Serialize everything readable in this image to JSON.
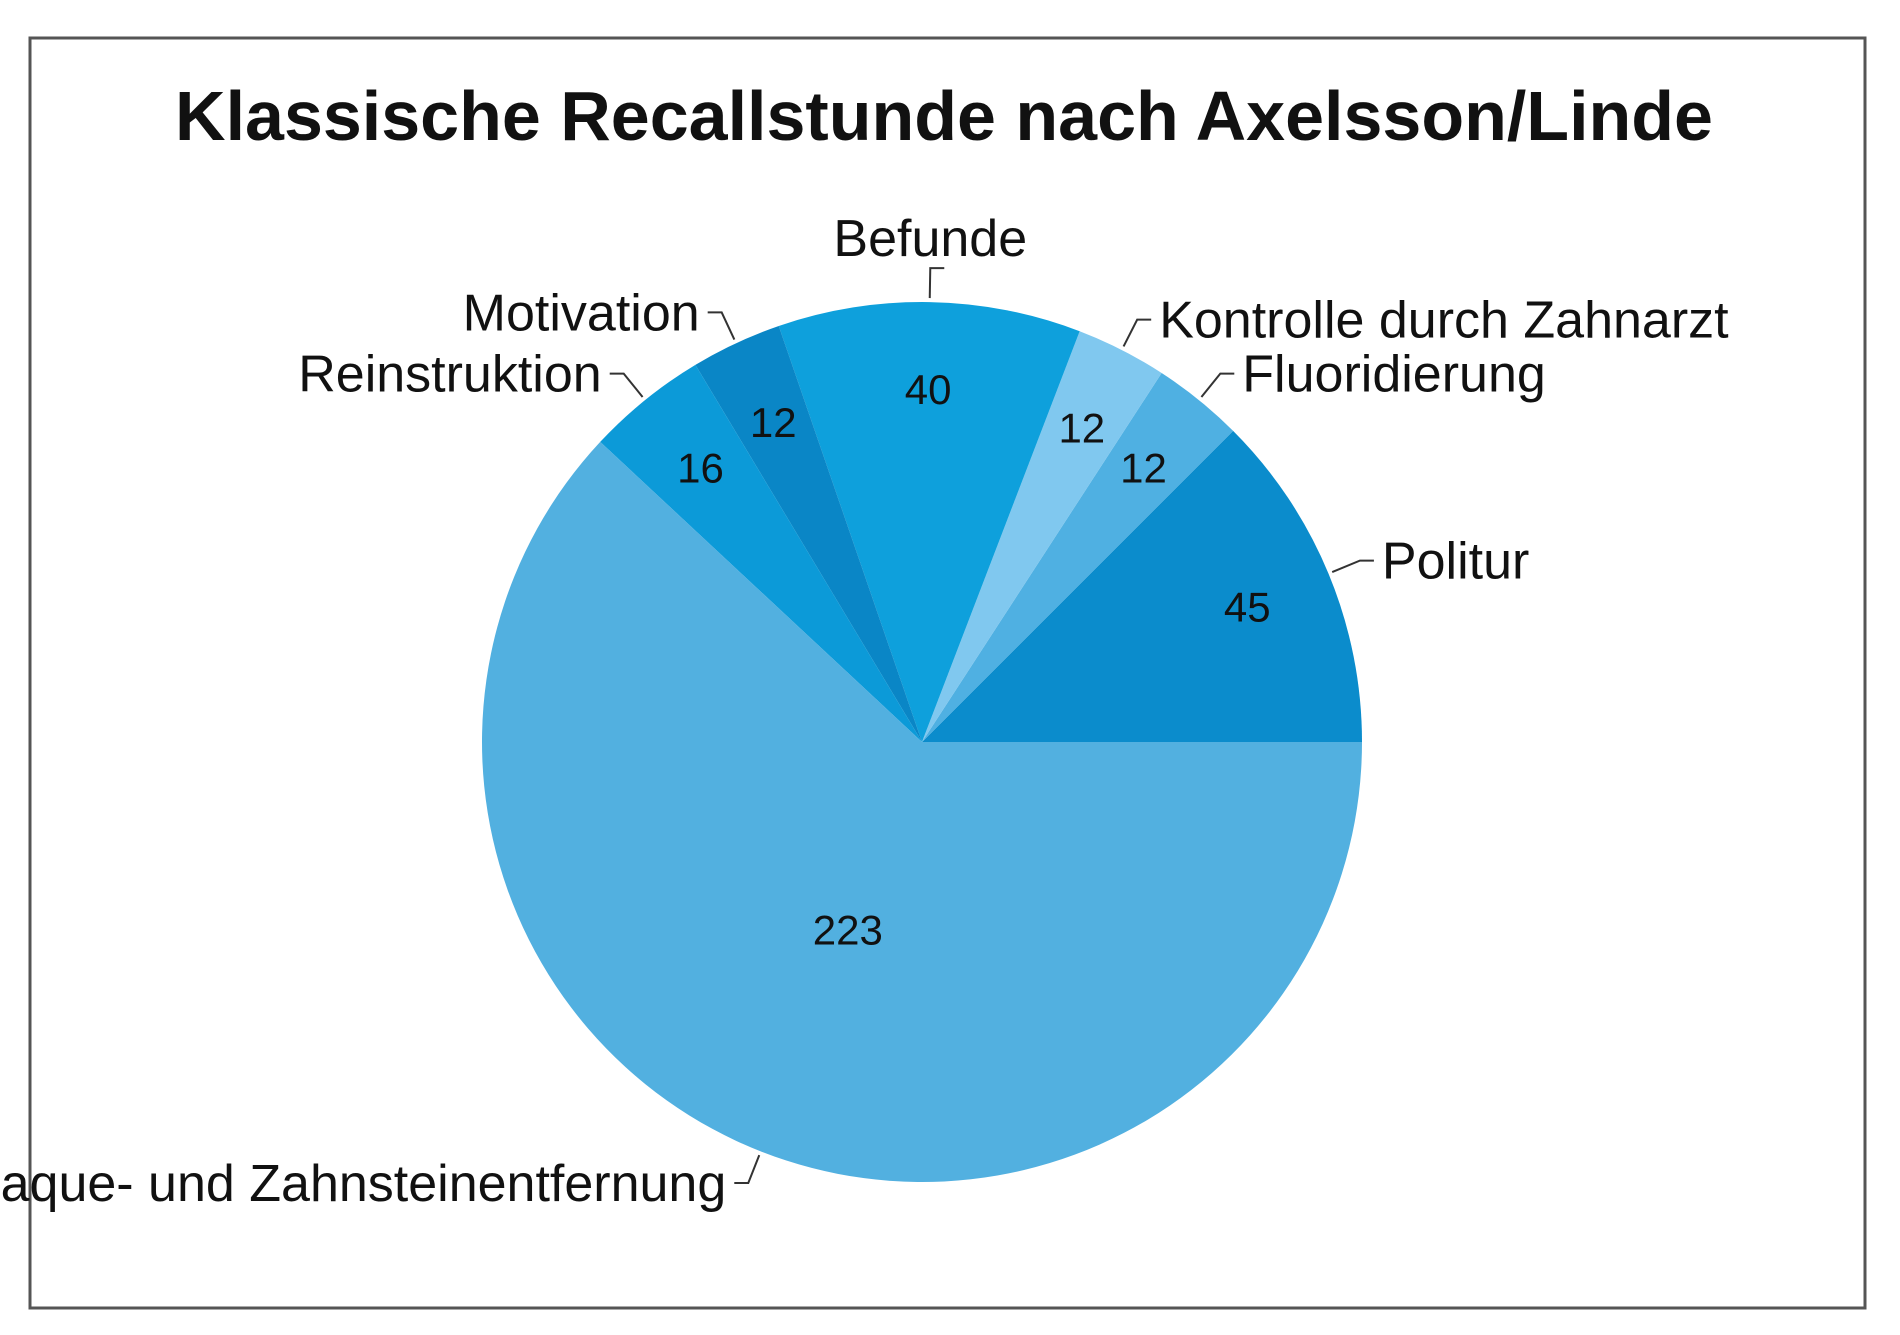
{
  "chart_data": {
    "type": "pie",
    "title": "Klassische Recallstunde nach Axelsson/Linde",
    "start_angle_deg": 0,
    "direction": "counterclockwise",
    "slices": [
      {
        "label": "Politur",
        "value": 45,
        "color": "#0b8ccc"
      },
      {
        "label": "Fluoridierung",
        "value": 12,
        "color": "#4fb0e2"
      },
      {
        "label": "Kontrolle durch Zahnarzt",
        "value": 12,
        "color": "#80c8ef"
      },
      {
        "label": "Befunde",
        "value": 40,
        "color": "#0ea0dc"
      },
      {
        "label": "Motivation",
        "value": 12,
        "color": "#0a86c6"
      },
      {
        "label": "Reinstruktion",
        "value": 16,
        "color": "#0c9ad8"
      },
      {
        "label": "Plaque- und Zahnsteinentfernung",
        "value": 223,
        "color": "#52b0e0"
      }
    ]
  }
}
